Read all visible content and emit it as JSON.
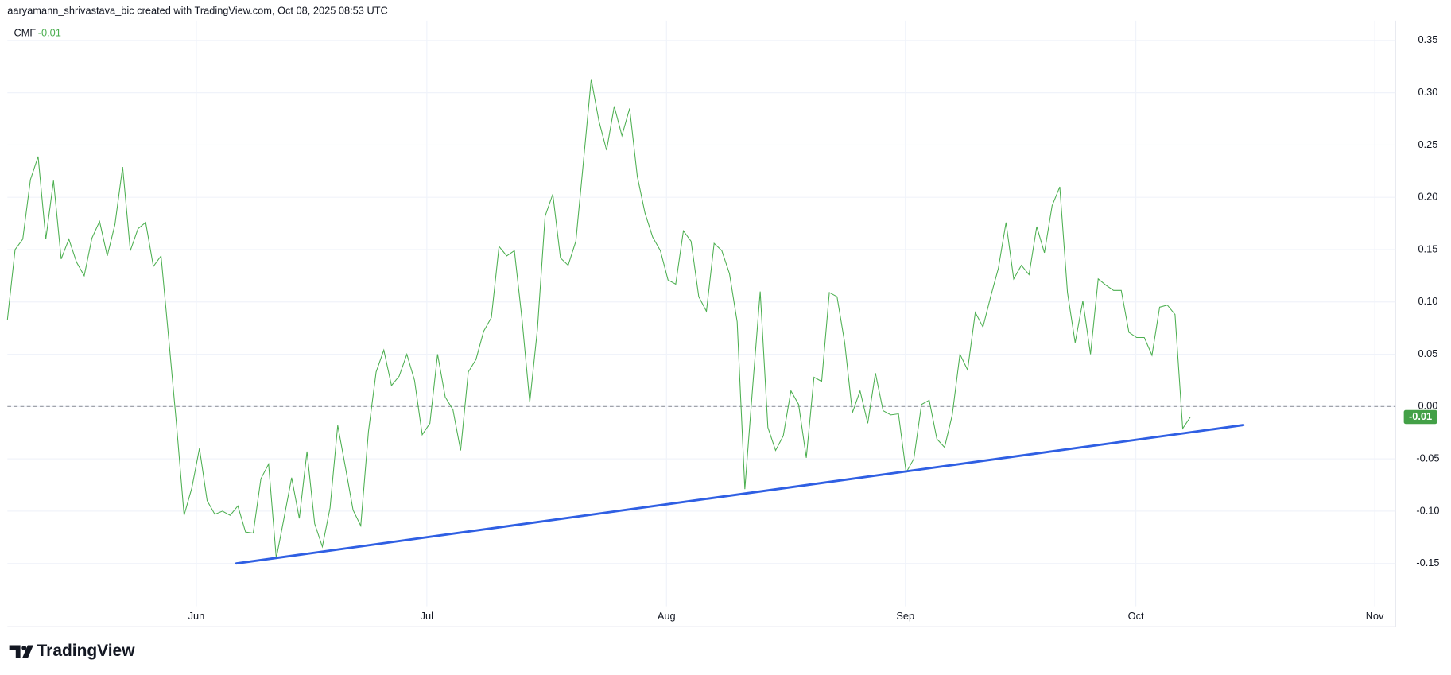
{
  "header": "aaryamann_shrivastava_bic created with TradingView.com, Oct 08, 2025 08:53 UTC",
  "brand": "TradingView",
  "chart_data": {
    "type": "line",
    "series": [
      {
        "name": "CMF",
        "color": "#4caf50",
        "values": [
          0.083,
          0.15,
          0.16,
          0.217,
          0.239,
          0.16,
          0.216,
          0.141,
          0.16,
          0.138,
          0.125,
          0.161,
          0.177,
          0.144,
          0.174,
          0.229,
          0.149,
          0.17,
          0.176,
          0.134,
          0.144,
          0.065,
          -0.016,
          -0.104,
          -0.078,
          -0.04,
          -0.09,
          -0.103,
          -0.1,
          -0.104,
          -0.095,
          -0.12,
          -0.121,
          -0.069,
          -0.055,
          -0.145,
          -0.107,
          -0.068,
          -0.107,
          -0.043,
          -0.112,
          -0.134,
          -0.097,
          -0.018,
          -0.058,
          -0.099,
          -0.114,
          -0.024,
          0.033,
          0.054,
          0.02,
          0.029,
          0.05,
          0.025,
          -0.027,
          -0.016,
          0.05,
          0.009,
          -0.003,
          -0.042,
          0.033,
          0.045,
          0.072,
          0.085,
          0.153,
          0.144,
          0.149,
          0.083,
          0.004,
          0.074,
          0.182,
          0.203,
          0.142,
          0.135,
          0.158,
          0.235,
          0.313,
          0.273,
          0.245,
          0.287,
          0.259,
          0.285,
          0.22,
          0.185,
          0.162,
          0.149,
          0.121,
          0.117,
          0.168,
          0.158,
          0.105,
          0.091,
          0.156,
          0.149,
          0.127,
          0.081,
          -0.079,
          0.017,
          0.11,
          -0.02,
          -0.042,
          -0.028,
          0.015,
          0.002,
          -0.049,
          0.028,
          0.024,
          0.109,
          0.105,
          0.061,
          -0.006,
          0.015,
          -0.016,
          0.032,
          -0.004,
          -0.008,
          -0.007,
          -0.063,
          -0.05,
          0.002,
          0.006,
          -0.031,
          -0.039,
          -0.008,
          0.05,
          0.035,
          0.09,
          0.076,
          0.105,
          0.132,
          0.176,
          0.122,
          0.135,
          0.126,
          0.172,
          0.147,
          0.192,
          0.21,
          0.109,
          0.061,
          0.101,
          0.05,
          0.122,
          0.116,
          0.111,
          0.111,
          0.071,
          0.066,
          0.066,
          0.049,
          0.095,
          0.097,
          0.088,
          -0.021,
          -0.01
        ]
      }
    ],
    "legend_value": "-0.01",
    "trendline": {
      "color": "#2f5fe3",
      "x": [
        29.8,
        160.9
      ],
      "y": [
        -0.15,
        -0.0177
      ]
    },
    "zero_line": 0,
    "xlim": [
      0,
      180.7
    ],
    "xticks": [
      {
        "value": 24.6,
        "label": "Jun"
      },
      {
        "value": 54.6,
        "label": "Jul"
      },
      {
        "value": 85.8,
        "label": "Aug"
      },
      {
        "value": 116.9,
        "label": "Sep"
      },
      {
        "value": 146.9,
        "label": "Oct"
      },
      {
        "value": 178,
        "label": "Nov"
      }
    ],
    "ylim": [
      -0.191,
      0.369
    ],
    "yticks": [
      -0.15,
      {
        "value": -0.1,
        "label": "-0.10"
      },
      -0.05,
      {
        "value": 0,
        "label": "0.00"
      },
      0.05,
      {
        "value": 0.1,
        "label": "0.10"
      },
      0.15,
      {
        "value": 0.2,
        "label": "0.20"
      },
      0.25,
      {
        "value": 0.3,
        "label": "0.30"
      },
      0.35
    ],
    "grid": true
  }
}
